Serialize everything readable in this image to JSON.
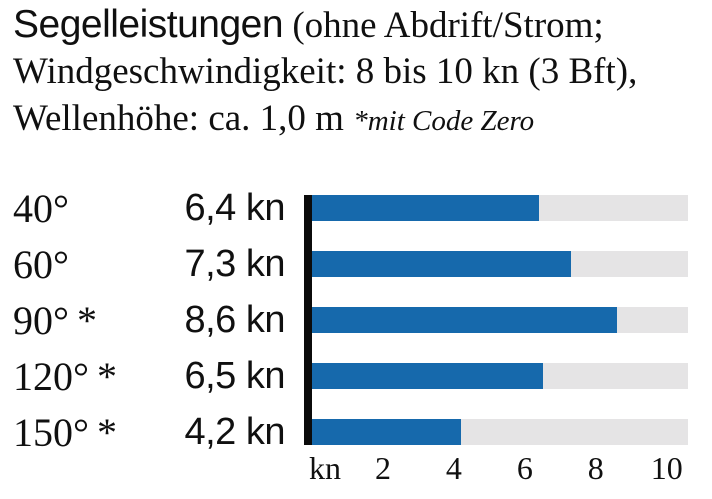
{
  "title": {
    "heading": "Segelleistungen",
    "heading_suffix": " (ohne Abdrift/Strom;",
    "line2": "Windgeschwindigkeit: 8 bis 10 kn (3 Bft),",
    "line3": "Wellenhöhe: ca. 1,0 m ",
    "footnote": "*mit Code Zero"
  },
  "chart_data": {
    "type": "bar",
    "orientation": "horizontal",
    "title": "Segelleistungen (ohne Abdrift/Strom; Windgeschwindigkeit: 8 bis 10 kn (3 Bft), Wellenhöhe: ca. 1,0 m) *mit Code Zero",
    "categories": [
      "40°",
      "60°",
      "90° *",
      "120° *",
      "150° *"
    ],
    "values": [
      6.4,
      7.3,
      8.6,
      6.5,
      4.2
    ],
    "value_labels": [
      "6,4 kn",
      "7,3 kn",
      "8,6 kn",
      "6,5 kn",
      "4,2 kn"
    ],
    "xlabel": "kn",
    "xlim": [
      0,
      10.6
    ],
    "x_axis": {
      "unit_label": "kn",
      "ticks": [
        2,
        4,
        6,
        8,
        10
      ],
      "tick_labels": [
        "2",
        "4",
        "6",
        "8",
        "10"
      ]
    },
    "grid": false,
    "legend": null,
    "colors": {
      "bar": "#1669ac",
      "track": "#e5e4e5",
      "axis": "#0b0b0b",
      "text": "#101010"
    }
  }
}
